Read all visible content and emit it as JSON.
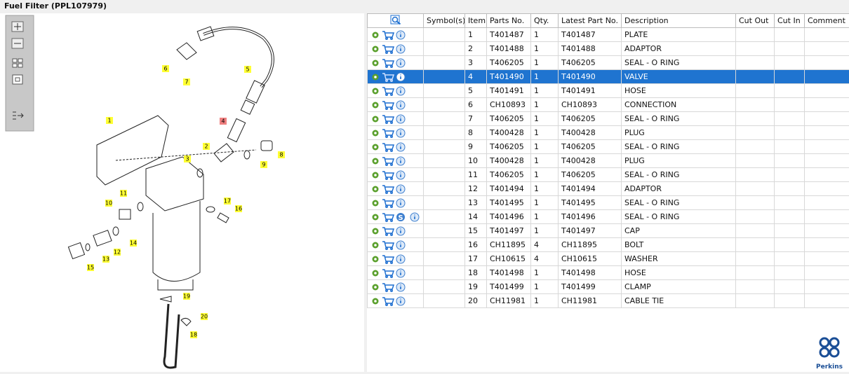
{
  "header": {
    "title": "Fuel Filter (PPL107979)"
  },
  "diagram": {
    "callouts": [
      "1",
      "2",
      "3",
      "4",
      "5",
      "6",
      "7",
      "8",
      "9",
      "10",
      "11",
      "12",
      "13",
      "14",
      "15",
      "16",
      "17",
      "18",
      "19",
      "20"
    ]
  },
  "table": {
    "columns": [
      "Symbol(s)",
      "Item",
      "Parts No.",
      "Qty.",
      "Latest Part No.",
      "Description",
      "Cut Out",
      "Cut In",
      "Comment"
    ],
    "selected_row": 3,
    "rows": [
      [
        null,
        1,
        "T401487",
        1,
        "T401487",
        "PLATE"
      ],
      [
        null,
        2,
        "T401488",
        1,
        "T401488",
        "ADAPTOR"
      ],
      [
        null,
        3,
        "T406205",
        1,
        "T406205",
        "SEAL - O RING"
      ],
      [
        null,
        4,
        "T401490",
        1,
        "T401490",
        "VALVE"
      ],
      [
        null,
        5,
        "T401491",
        1,
        "T401491",
        "HOSE"
      ],
      [
        null,
        6,
        "CH10893",
        1,
        "CH10893",
        "CONNECTION"
      ],
      [
        null,
        7,
        "T406205",
        1,
        "T406205",
        "SEAL - O RING"
      ],
      [
        null,
        8,
        "T400428",
        1,
        "T400428",
        "PLUG"
      ],
      [
        null,
        9,
        "T406205",
        1,
        "T406205",
        "SEAL - O RING"
      ],
      [
        null,
        10,
        "T400428",
        1,
        "T400428",
        "PLUG"
      ],
      [
        null,
        11,
        "T406205",
        1,
        "T406205",
        "SEAL - O RING"
      ],
      [
        null,
        12,
        "T401494",
        1,
        "T401494",
        "ADAPTOR"
      ],
      [
        null,
        13,
        "T401495",
        1,
        "T401495",
        "SEAL - O RING"
      ],
      [
        "S",
        14,
        "T401496",
        1,
        "T401496",
        "SEAL - O RING"
      ],
      [
        null,
        15,
        "T401497",
        1,
        "T401497",
        "CAP"
      ],
      [
        null,
        16,
        "CH11895",
        4,
        "CH11895",
        "BOLT"
      ],
      [
        null,
        17,
        "CH10615",
        4,
        "CH10615",
        "WASHER"
      ],
      [
        null,
        18,
        "T401498",
        1,
        "T401498",
        "HOSE"
      ],
      [
        null,
        19,
        "T401499",
        1,
        "T401499",
        "CLAMP"
      ],
      [
        null,
        20,
        "CH11981",
        1,
        "CH11981",
        "CABLE TIE"
      ]
    ]
  },
  "logo": {
    "text": "Perkins"
  }
}
